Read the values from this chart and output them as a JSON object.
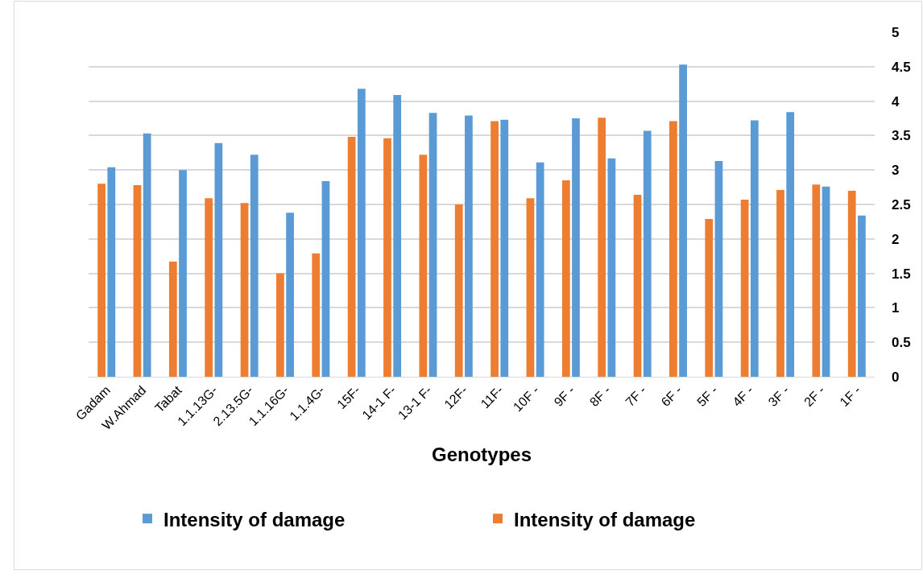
{
  "chart_data": {
    "type": "bar",
    "xlabel": "Genotypes",
    "categories": [
      "Gadam",
      "W.Ahmad",
      "Tabat",
      "1.1.13G-",
      "2.13.5G-",
      "1.1.16G-",
      "1.1.4G-",
      "15F-",
      "14-1 F-",
      "13-1 F-",
      "12F-",
      "11F-",
      "10F -",
      "9F -",
      "8F -",
      "7F -",
      "6F -",
      "5F -",
      "4F -",
      "3F -",
      "2F -",
      "1F -"
    ],
    "series": [
      {
        "name": "Intensity of damage",
        "color": "#ed7d31",
        "values": [
          2.8,
          2.78,
          1.67,
          2.59,
          2.52,
          1.5,
          1.79,
          3.48,
          3.46,
          3.22,
          2.5,
          3.71,
          2.59,
          2.85,
          3.76,
          2.64,
          3.71,
          2.29,
          2.57,
          2.71,
          2.79,
          2.7
        ]
      },
      {
        "name": "Intensity of damage",
        "color": "#5b9bd5",
        "values": [
          3.04,
          3.53,
          3.0,
          3.39,
          3.22,
          2.38,
          2.84,
          4.18,
          4.09,
          3.83,
          3.79,
          3.73,
          3.11,
          3.75,
          3.17,
          3.57,
          4.53,
          3.13,
          3.72,
          3.84,
          2.76,
          2.34
        ]
      }
    ],
    "ylim": [
      0,
      5
    ],
    "yticks": [
      0,
      0.5,
      1,
      1.5,
      2,
      2.5,
      3,
      3.5,
      4,
      4.5,
      5
    ],
    "grid": "y",
    "legend": "bottom"
  }
}
